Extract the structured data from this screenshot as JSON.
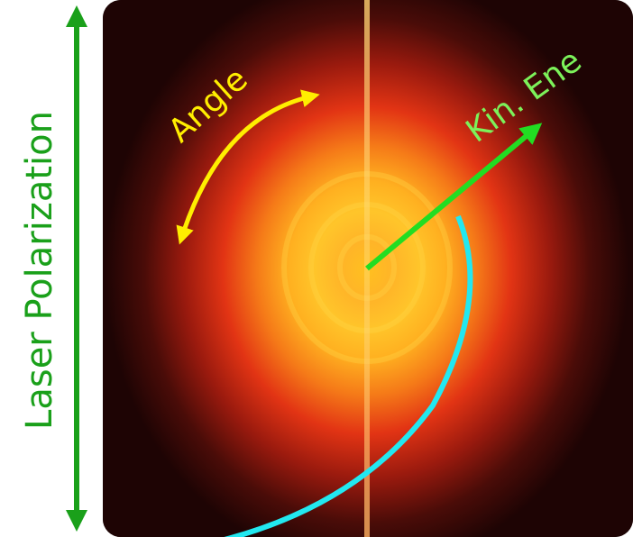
{
  "labels": {
    "polarization": "Laser Polarization",
    "angle": "Angle",
    "energy": "Kin. Ene"
  }
}
